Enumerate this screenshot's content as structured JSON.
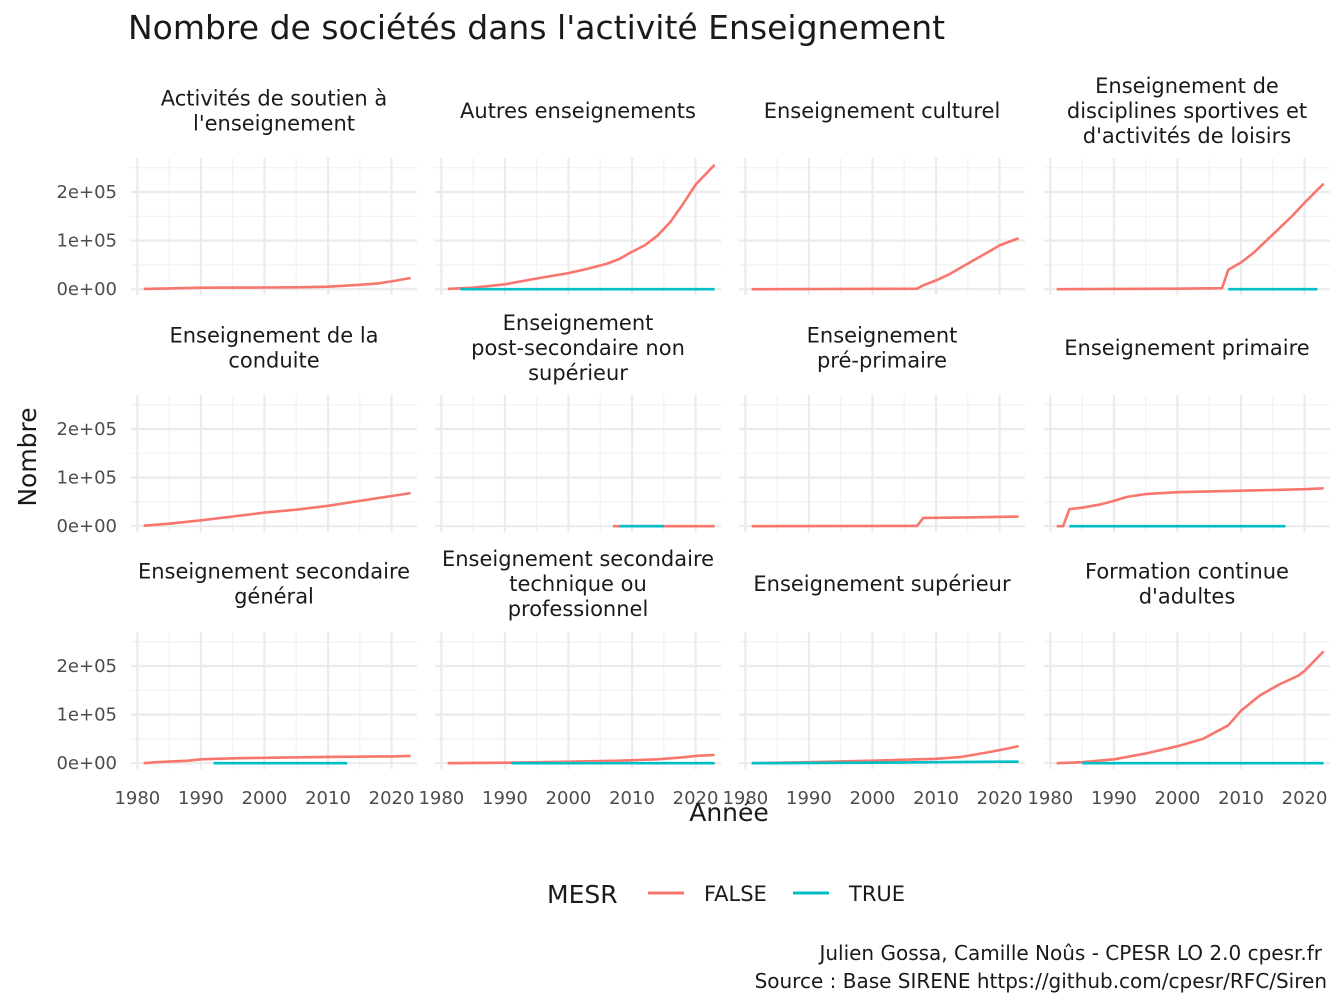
{
  "chart_data": {
    "type": "line",
    "title": "Nombre de sociétés dans l'activité Enseignement",
    "xlabel": "Année",
    "ylabel": "Nombre",
    "x_ticks": [
      1980,
      1990,
      2000,
      2010,
      2020
    ],
    "y_ticks": [
      0,
      100000,
      200000
    ],
    "y_tick_labels": [
      "0e+00",
      "1e+05",
      "2e+05"
    ],
    "xlim": [
      1979,
      2024
    ],
    "ylim": [
      -12000,
      270000
    ],
    "grid": true,
    "legend": {
      "title": "MESR",
      "placement": "bottom",
      "entries": [
        {
          "label": "FALSE",
          "color": "#F8766D"
        },
        {
          "label": "TRUE",
          "color": "#00BFC4"
        }
      ]
    },
    "caption": [
      "Julien Gossa, Camille Noûs - CPESR LO 2.0 cpesr.fr",
      "Source : Base SIRENE https://github.com/cpesr/RFC/Siren"
    ],
    "facets": [
      {
        "title": [
          "Activités de soutien à",
          "l'enseignement"
        ],
        "series": [
          {
            "name": "FALSE",
            "points": [
              [
                1981,
                500
              ],
              [
                1985,
                1500
              ],
              [
                1990,
                3000
              ],
              [
                2000,
                3500
              ],
              [
                2005,
                3800
              ],
              [
                2010,
                5000
              ],
              [
                2015,
                9000
              ],
              [
                2018,
                12000
              ],
              [
                2020,
                16000
              ],
              [
                2023,
                23000
              ]
            ]
          }
        ]
      },
      {
        "title": [
          "Autres enseignements"
        ],
        "series": [
          {
            "name": "FALSE",
            "points": [
              [
                1981,
                500
              ],
              [
                1985,
                3000
              ],
              [
                1990,
                10000
              ],
              [
                1995,
                22000
              ],
              [
                2000,
                33000
              ],
              [
                2003,
                42000
              ],
              [
                2006,
                52000
              ],
              [
                2008,
                62000
              ],
              [
                2010,
                77000
              ],
              [
                2012,
                90000
              ],
              [
                2014,
                110000
              ],
              [
                2016,
                138000
              ],
              [
                2018,
                175000
              ],
              [
                2020,
                215000
              ],
              [
                2023,
                256000
              ]
            ]
          },
          {
            "name": "TRUE",
            "points": [
              [
                1983,
                0
              ],
              [
                2023,
                0
              ]
            ]
          }
        ]
      },
      {
        "title": [
          "Enseignement culturel"
        ],
        "series": [
          {
            "name": "FALSE",
            "points": [
              [
                1981,
                0
              ],
              [
                2007,
                1000
              ],
              [
                2008,
                8000
              ],
              [
                2010,
                18000
              ],
              [
                2012,
                30000
              ],
              [
                2014,
                45000
              ],
              [
                2016,
                60000
              ],
              [
                2018,
                75000
              ],
              [
                2020,
                90000
              ],
              [
                2023,
                105000
              ]
            ]
          }
        ]
      },
      {
        "title": [
          "Enseignement de",
          "disciplines sportives et",
          "d'activités de loisirs"
        ],
        "series": [
          {
            "name": "FALSE",
            "points": [
              [
                1981,
                0
              ],
              [
                2000,
                1000
              ],
              [
                2007,
                2000
              ],
              [
                2008,
                40000
              ],
              [
                2010,
                55000
              ],
              [
                2012,
                75000
              ],
              [
                2014,
                100000
              ],
              [
                2016,
                125000
              ],
              [
                2018,
                150000
              ],
              [
                2020,
                178000
              ],
              [
                2023,
                217000
              ]
            ]
          },
          {
            "name": "TRUE",
            "points": [
              [
                2008,
                0
              ],
              [
                2022,
                0
              ]
            ]
          }
        ]
      },
      {
        "title": [
          "Enseignement de la",
          "conduite"
        ],
        "series": [
          {
            "name": "FALSE",
            "points": [
              [
                1981,
                1000
              ],
              [
                1985,
                5000
              ],
              [
                1990,
                12000
              ],
              [
                1995,
                20000
              ],
              [
                2000,
                28000
              ],
              [
                2005,
                34000
              ],
              [
                2010,
                42000
              ],
              [
                2015,
                52000
              ],
              [
                2020,
                62000
              ],
              [
                2023,
                68000
              ]
            ]
          }
        ]
      },
      {
        "title": [
          "Enseignement",
          "post-secondaire non",
          "supérieur"
        ],
        "series": [
          {
            "name": "FALSE",
            "points": [
              [
                2007,
                0
              ],
              [
                2023,
                0
              ]
            ]
          },
          {
            "name": "TRUE",
            "points": [
              [
                2008,
                0
              ],
              [
                2015,
                0
              ]
            ]
          }
        ]
      },
      {
        "title": [
          "Enseignement",
          "pré-primaire"
        ],
        "series": [
          {
            "name": "FALSE",
            "points": [
              [
                1981,
                0
              ],
              [
                2007,
                500
              ],
              [
                2008,
                17000
              ],
              [
                2015,
                18000
              ],
              [
                2023,
                20000
              ]
            ]
          }
        ]
      },
      {
        "title": [
          "Enseignement primaire"
        ],
        "series": [
          {
            "name": "FALSE",
            "points": [
              [
                1981,
                0
              ],
              [
                1982,
                0
              ],
              [
                1983,
                35000
              ],
              [
                1985,
                38000
              ],
              [
                1988,
                45000
              ],
              [
                1990,
                52000
              ],
              [
                1992,
                60000
              ],
              [
                1995,
                66000
              ],
              [
                2000,
                70000
              ],
              [
                2010,
                73000
              ],
              [
                2020,
                76000
              ],
              [
                2023,
                78000
              ]
            ]
          },
          {
            "name": "TRUE",
            "points": [
              [
                1983,
                0
              ],
              [
                2017,
                0
              ]
            ]
          }
        ]
      },
      {
        "title": [
          "Enseignement secondaire",
          "général"
        ],
        "series": [
          {
            "name": "FALSE",
            "points": [
              [
                1981,
                0
              ],
              [
                1983,
                2000
              ],
              [
                1988,
                5000
              ],
              [
                1990,
                8000
              ],
              [
                1995,
                10000
              ],
              [
                2000,
                11000
              ],
              [
                2010,
                13000
              ],
              [
                2020,
                14000
              ],
              [
                2023,
                15000
              ]
            ]
          },
          {
            "name": "TRUE",
            "points": [
              [
                1992,
                0
              ],
              [
                2013,
                0
              ]
            ]
          }
        ]
      },
      {
        "title": [
          "Enseignement secondaire",
          "technique ou",
          "professionnel"
        ],
        "series": [
          {
            "name": "FALSE",
            "points": [
              [
                1981,
                0
              ],
              [
                1990,
                1000
              ],
              [
                2000,
                3000
              ],
              [
                2008,
                5000
              ],
              [
                2014,
                8000
              ],
              [
                2018,
                12000
              ],
              [
                2020,
                15000
              ],
              [
                2023,
                17000
              ]
            ]
          },
          {
            "name": "TRUE",
            "points": [
              [
                1991,
                0
              ],
              [
                2023,
                0
              ]
            ]
          }
        ]
      },
      {
        "title": [
          "Enseignement supérieur"
        ],
        "series": [
          {
            "name": "FALSE",
            "points": [
              [
                1981,
                0
              ],
              [
                1990,
                2000
              ],
              [
                2000,
                5000
              ],
              [
                2010,
                9000
              ],
              [
                2014,
                13000
              ],
              [
                2018,
                22000
              ],
              [
                2020,
                27000
              ],
              [
                2023,
                35000
              ]
            ]
          },
          {
            "name": "TRUE",
            "points": [
              [
                1981,
                0
              ],
              [
                2000,
                1000
              ],
              [
                2010,
                2000
              ],
              [
                2020,
                3000
              ],
              [
                2023,
                3000
              ]
            ]
          }
        ]
      },
      {
        "title": [
          "Formation continue",
          "d'adultes"
        ],
        "series": [
          {
            "name": "FALSE",
            "points": [
              [
                1981,
                0
              ],
              [
                1985,
                2000
              ],
              [
                1990,
                8000
              ],
              [
                1995,
                20000
              ],
              [
                2000,
                35000
              ],
              [
                2004,
                50000
              ],
              [
                2008,
                78000
              ],
              [
                2010,
                108000
              ],
              [
                2013,
                140000
              ],
              [
                2016,
                162000
              ],
              [
                2019,
                180000
              ],
              [
                2020,
                190000
              ],
              [
                2023,
                230000
              ]
            ]
          },
          {
            "name": "TRUE",
            "points": [
              [
                1985,
                0
              ],
              [
                2023,
                0
              ]
            ]
          }
        ]
      }
    ]
  }
}
